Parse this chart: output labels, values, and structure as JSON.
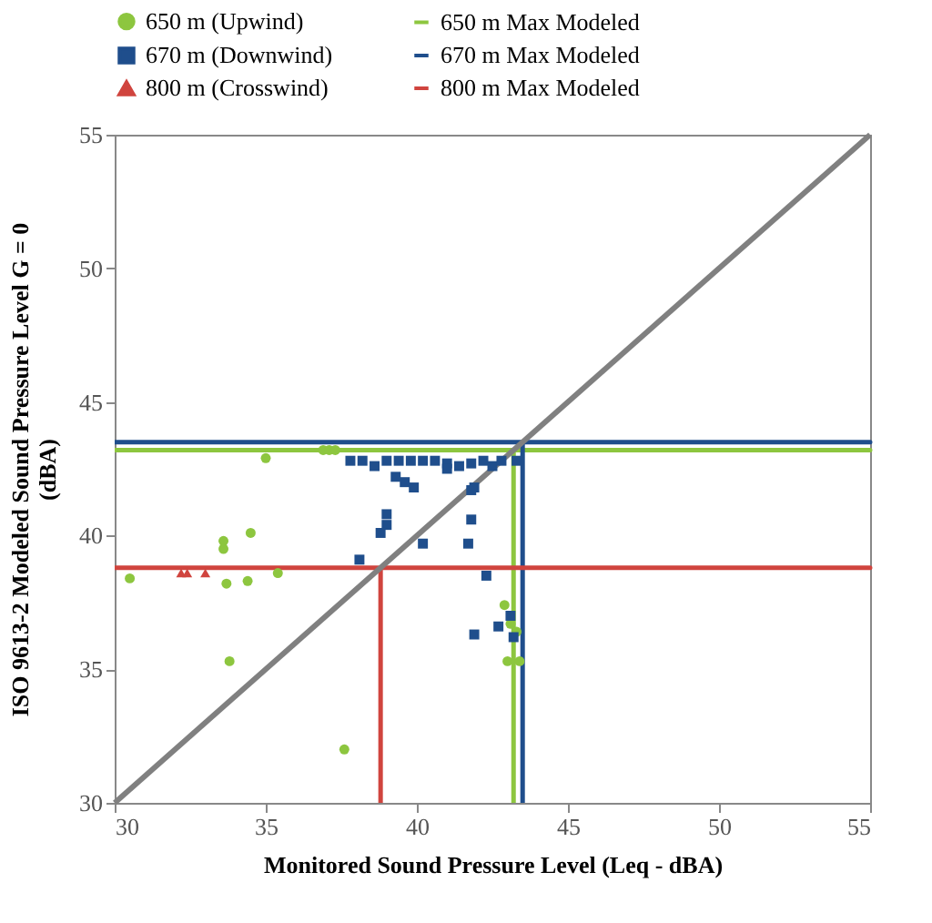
{
  "chart_data": {
    "type": "scatter",
    "xlabel": "Monitored Sound Pressure Level (Leq - dBA)",
    "ylabel": "ISO 9613-2 Modeled Sound Pressure Level G = 0\n(dBA)",
    "xlim": [
      30,
      55
    ],
    "xticks": [
      30,
      35,
      40,
      45,
      50,
      55
    ],
    "ylim": [
      30,
      55
    ],
    "yticks": [
      30,
      35,
      40,
      45,
      50,
      55
    ],
    "legend": "top",
    "series": [
      {
        "name": "650 m (Upwind)",
        "marker": "circle",
        "color": "#8dc63f",
        "x": [
          30.5,
          35.0,
          33.6,
          33.6,
          34.5,
          33.7,
          34.4,
          35.4,
          33.8,
          37.6,
          36.9,
          37.1,
          37.3,
          42.9,
          43.0,
          43.1,
          43.3,
          43.4
        ],
        "values": [
          38.4,
          42.9,
          39.8,
          39.5,
          40.1,
          38.2,
          38.3,
          38.6,
          35.3,
          32.0,
          43.2,
          43.2,
          43.2,
          37.4,
          35.3,
          36.7,
          36.4,
          35.3
        ]
      },
      {
        "name": "670 m (Downwind)",
        "marker": "square",
        "color": "#1f4e8c",
        "x": [
          37.8,
          38.2,
          39.0,
          39.4,
          39.8,
          40.2,
          40.6,
          41.0,
          41.4,
          41.8,
          42.2,
          42.5,
          42.8,
          43.3,
          38.6,
          39.3,
          39.6,
          39.9,
          41.0,
          41.8,
          39.0,
          39.0,
          38.8,
          40.2,
          41.8,
          41.7,
          38.1,
          42.3,
          41.9,
          42.7,
          43.1,
          43.2,
          41.9
        ],
        "values": [
          42.8,
          42.8,
          42.8,
          42.8,
          42.8,
          42.8,
          42.8,
          42.7,
          42.6,
          42.7,
          42.8,
          42.6,
          42.8,
          42.8,
          42.6,
          42.2,
          42.0,
          41.8,
          42.5,
          41.7,
          40.8,
          40.4,
          40.1,
          39.7,
          40.6,
          39.7,
          39.1,
          38.5,
          36.3,
          36.6,
          37.0,
          36.2,
          41.8
        ]
      },
      {
        "name": "800 m (Crosswind)",
        "marker": "triangle",
        "color": "#d0443e",
        "x": [
          32.2,
          32.4,
          33.0
        ],
        "values": [
          38.6,
          38.6,
          38.6
        ]
      },
      {
        "name": "650 m Max Modeled",
        "type": "line",
        "marker": "none",
        "color": "#8dc63f",
        "x": [
          30,
          55,
          43.2,
          43.2
        ],
        "values": [
          43.2,
          43.2,
          43.2,
          30
        ]
      },
      {
        "name": "670 m Max Modeled",
        "type": "line",
        "marker": "none",
        "color": "#1f4e8c",
        "x": [
          30,
          55,
          43.5,
          43.5
        ],
        "values": [
          43.5,
          43.5,
          43.5,
          30
        ]
      },
      {
        "name": "800 m Max Modeled",
        "type": "line",
        "marker": "none",
        "color": "#d0443e",
        "x": [
          30,
          55,
          38.8,
          38.8
        ],
        "values": [
          38.8,
          38.8,
          38.8,
          30
        ]
      },
      {
        "type": "line",
        "marker": "none",
        "color": "#808080",
        "x": [
          30,
          55
        ],
        "values": [
          30,
          55
        ]
      }
    ]
  }
}
